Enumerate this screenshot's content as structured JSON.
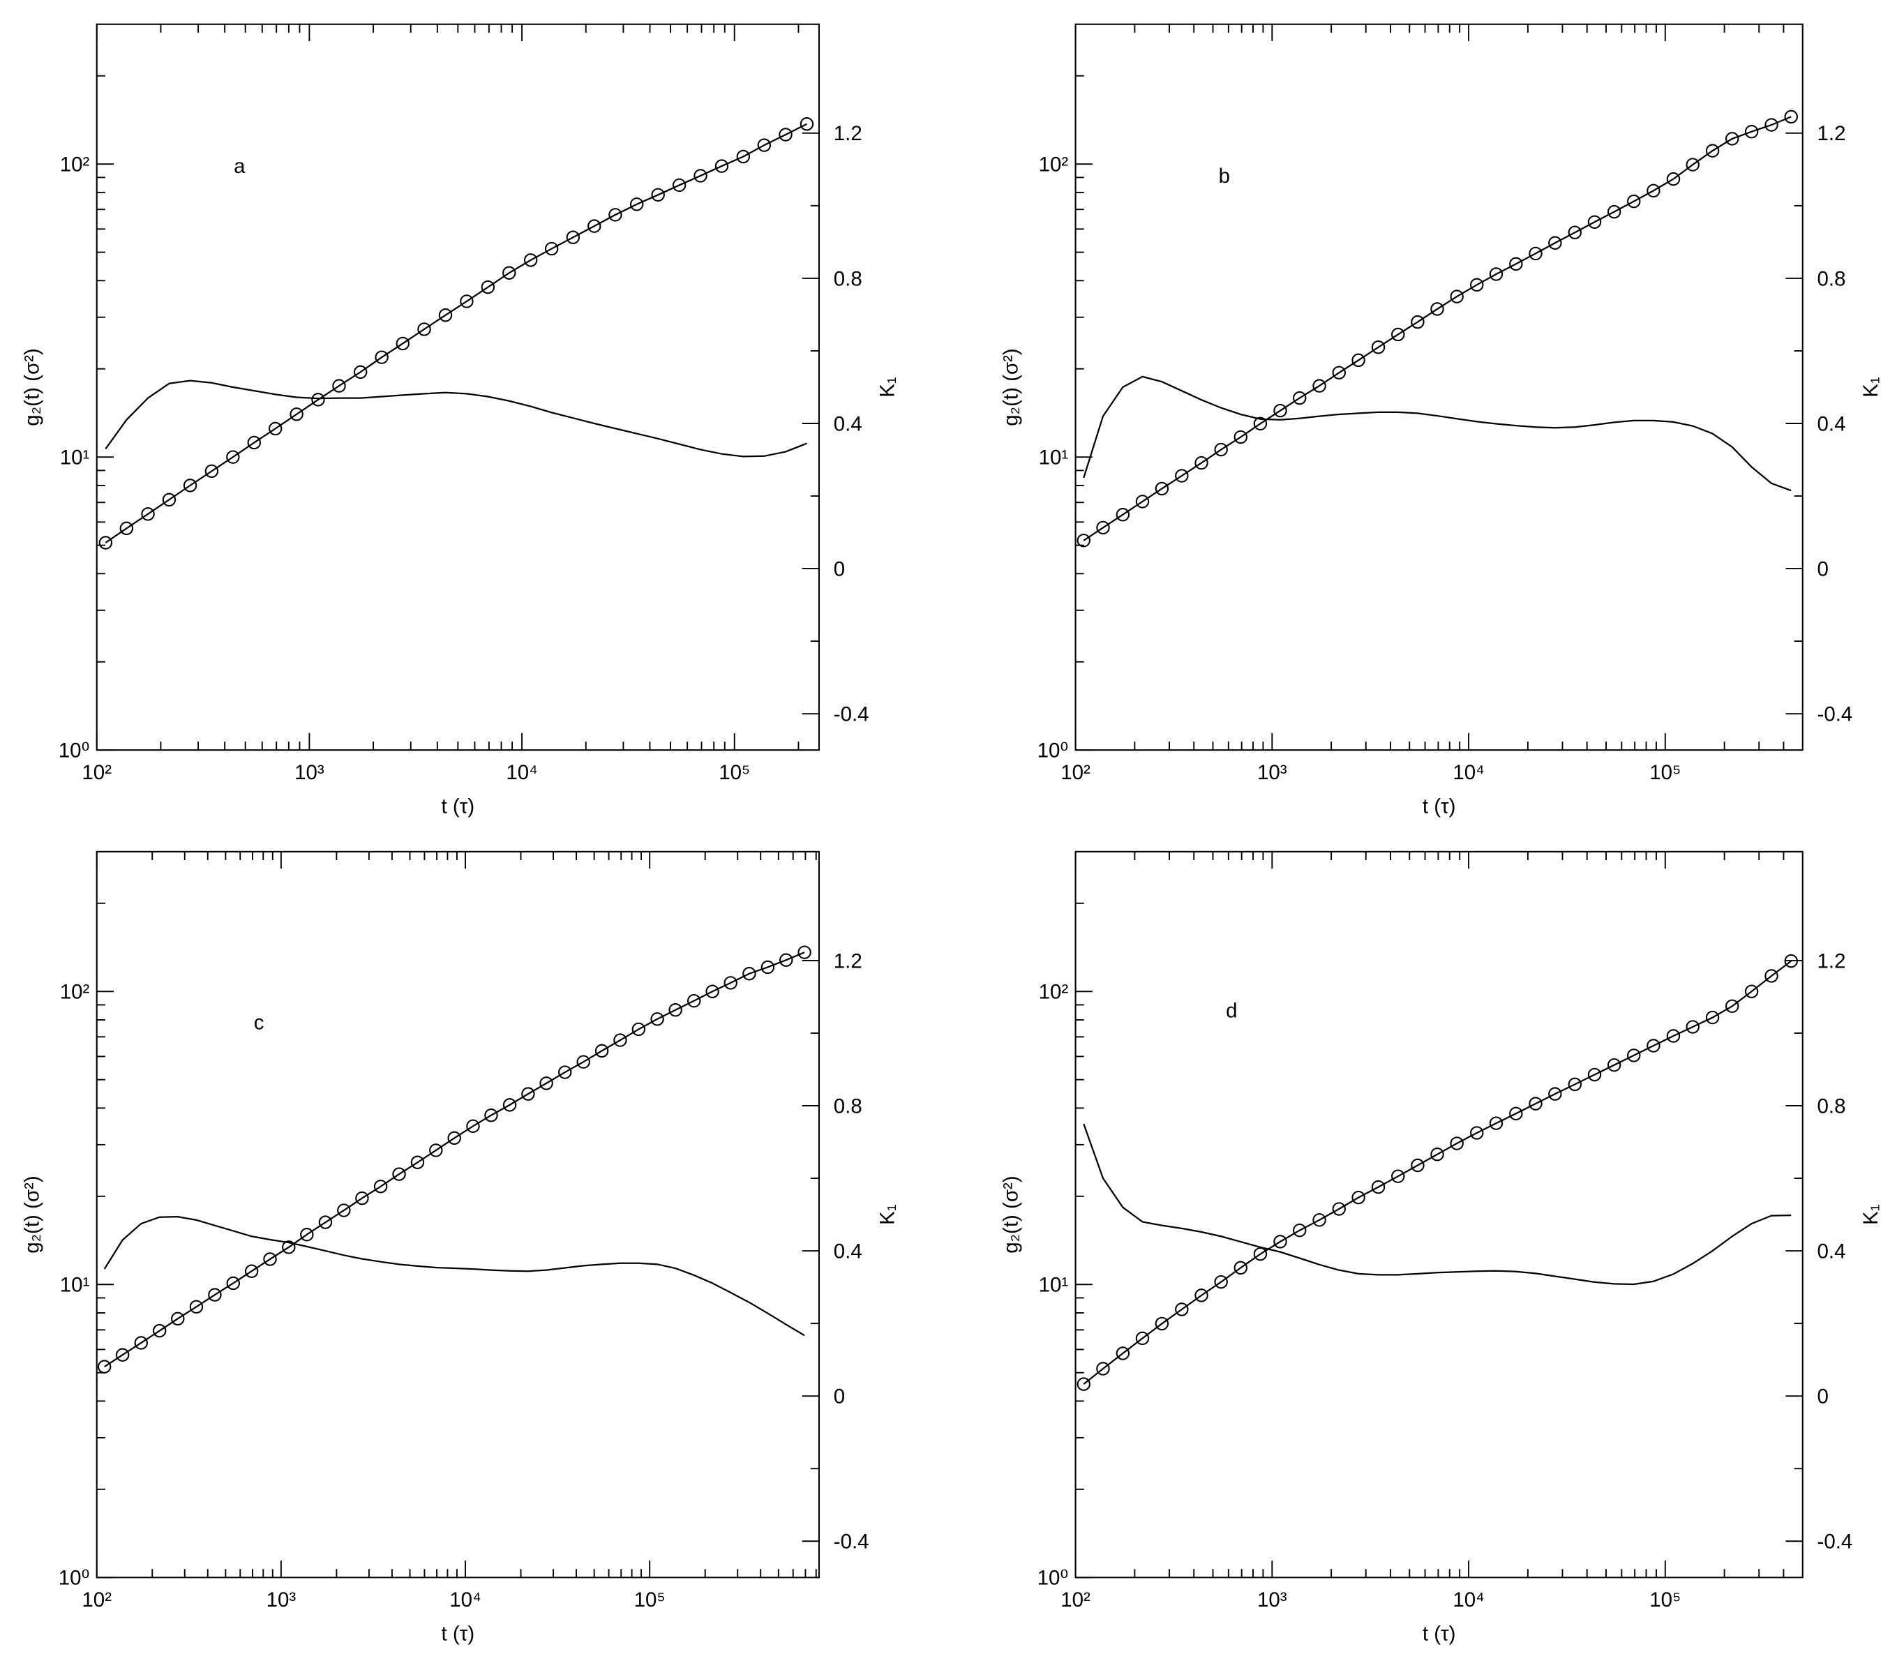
{
  "chart_data": [
    {
      "type": "line",
      "annotation": "a",
      "xlabel": "t (τ)",
      "ylabel": "g₂(t) (σ²)",
      "y2label": "K₁",
      "xscale": "log",
      "yscale": "log",
      "xlim": [
        100,
        250000
      ],
      "ylim": [
        1,
        300
      ],
      "y2lim": [
        -0.5,
        1.5
      ],
      "xticks": [
        {
          "value": 100,
          "label": "10²"
        },
        {
          "value": 1000,
          "label": "10³"
        },
        {
          "value": 10000,
          "label": "10⁴"
        },
        {
          "value": 100000,
          "label": "10⁵"
        }
      ],
      "yticks": [
        {
          "value": 1,
          "label": "10⁰"
        },
        {
          "value": 10,
          "label": "10¹"
        },
        {
          "value": 100,
          "label": "10²"
        }
      ],
      "y2ticks": [
        -0.4,
        0,
        0.4,
        0.8,
        1.2
      ],
      "x": [
        110,
        138,
        174,
        219,
        275,
        347,
        437,
        550,
        692,
        871,
        1100,
        1380,
        1740,
        2190,
        2750,
        3470,
        4370,
        5500,
        6920,
        8710,
        11000,
        13800,
        17400,
        21900,
        27500,
        34700,
        43700,
        55000,
        69200,
        87100,
        110000,
        138000,
        174000,
        219000
      ],
      "series": [
        {
          "color": "#000000",
          "markers": true,
          "values": [
            5.1,
            5.71,
            6.39,
            7.15,
            8,
            8.95,
            10,
            11.2,
            12.5,
            14,
            15.7,
            17.5,
            19.5,
            21.9,
            24.4,
            27.3,
            30.5,
            34,
            38,
            42.5,
            47,
            51.4,
            56.2,
            61.4,
            67.1,
            72.9,
            78.5,
            84.7,
            91.2,
            98.4,
            106,
            116,
            126,
            137
          ]
        },
        {
          "color": "#000000",
          "markers": false,
          "axis": "y2",
          "values": [
            0.33,
            0.41,
            0.47,
            0.51,
            0.518,
            0.512,
            0.5,
            0.49,
            0.48,
            0.472,
            0.469,
            0.47,
            0.47,
            0.474,
            0.478,
            0.482,
            0.485,
            0.482,
            0.474,
            0.462,
            0.447,
            0.43,
            0.415,
            0.4,
            0.386,
            0.372,
            0.358,
            0.343,
            0.328,
            0.316,
            0.309,
            0.31,
            0.322,
            0.345
          ]
        }
      ]
    },
    {
      "type": "line",
      "annotation": "b",
      "xlabel": "t (τ)",
      "ylabel": "g₂(t) (σ²)",
      "y2label": "K₁",
      "xscale": "log",
      "yscale": "log",
      "xlim": [
        100,
        500000
      ],
      "ylim": [
        1,
        300
      ],
      "y2lim": [
        -0.5,
        1.5
      ],
      "xticks": [
        {
          "value": 100,
          "label": "10²"
        },
        {
          "value": 1000,
          "label": "10³"
        },
        {
          "value": 10000,
          "label": "10⁴"
        },
        {
          "value": 100000,
          "label": "10⁵"
        }
      ],
      "yticks": [
        {
          "value": 1,
          "label": "10⁰"
        },
        {
          "value": 10,
          "label": "10¹"
        },
        {
          "value": 100,
          "label": "10²"
        }
      ],
      "y2ticks": [
        -0.4,
        0,
        0.4,
        0.8,
        1.2
      ],
      "x": [
        110,
        138,
        174,
        219,
        275,
        347,
        437,
        550,
        692,
        871,
        1100,
        1380,
        1740,
        2190,
        2750,
        3470,
        4370,
        5500,
        6920,
        8710,
        11000,
        13800,
        17400,
        21900,
        27500,
        34700,
        43700,
        55000,
        69200,
        87100,
        110000,
        138000,
        174000,
        219000,
        275000,
        347000,
        437000
      ],
      "series": [
        {
          "color": "#000000",
          "markers": true,
          "values": [
            5.19,
            5.74,
            6.36,
            7.05,
            7.8,
            8.63,
            9.55,
            10.6,
            11.7,
            13,
            14.4,
            15.9,
            17.5,
            19.4,
            21.4,
            23.7,
            26.2,
            28.9,
            32,
            35.3,
            38.7,
            42.1,
            45.6,
            49.5,
            53.8,
            58.4,
            63.4,
            68.7,
            74.6,
            81.1,
            88.9,
            99.5,
            111,
            122,
            129,
            136,
            145
          ]
        },
        {
          "color": "#000000",
          "markers": false,
          "axis": "y2",
          "values": [
            0.25,
            0.42,
            0.5,
            0.529,
            0.515,
            0.49,
            0.465,
            0.443,
            0.425,
            0.412,
            0.41,
            0.414,
            0.42,
            0.425,
            0.428,
            0.431,
            0.431,
            0.428,
            0.421,
            0.413,
            0.405,
            0.399,
            0.394,
            0.39,
            0.388,
            0.39,
            0.396,
            0.403,
            0.408,
            0.408,
            0.404,
            0.393,
            0.372,
            0.335,
            0.28,
            0.235,
            0.215
          ]
        }
      ]
    },
    {
      "type": "line",
      "annotation": "c",
      "xlabel": "t (τ)",
      "ylabel": "g₂(t) (σ²)",
      "y2label": "K₁",
      "xscale": "log",
      "yscale": "log",
      "xlim": [
        100,
        830000
      ],
      "ylim": [
        1,
        300
      ],
      "y2lim": [
        -0.5,
        1.5
      ],
      "xticks": [
        {
          "value": 100,
          "label": "10²"
        },
        {
          "value": 1000,
          "label": "10³"
        },
        {
          "value": 10000,
          "label": "10⁴"
        },
        {
          "value": 100000,
          "label": "10⁵"
        }
      ],
      "yticks": [
        {
          "value": 1,
          "label": "10⁰"
        },
        {
          "value": 10,
          "label": "10¹"
        },
        {
          "value": 100,
          "label": "10²"
        }
      ],
      "y2ticks": [
        -0.4,
        0,
        0.4,
        0.8,
        1.2
      ],
      "x": [
        110,
        138,
        174,
        219,
        275,
        347,
        437,
        550,
        692,
        871,
        1100,
        1380,
        1740,
        2190,
        2750,
        3470,
        4370,
        5500,
        6920,
        8710,
        11000,
        13800,
        17400,
        21900,
        27500,
        34700,
        43700,
        55000,
        69200,
        87100,
        110000,
        138000,
        174000,
        219000,
        275000,
        347000,
        437000,
        550000,
        692000
      ],
      "series": [
        {
          "color": "#000000",
          "markers": true,
          "values": [
            5.24,
            5.75,
            6.32,
            6.95,
            7.64,
            8.39,
            9.22,
            10.1,
            11.1,
            12.2,
            13.4,
            14.8,
            16.3,
            17.9,
            19.7,
            21.6,
            23.8,
            26.1,
            28.7,
            31.6,
            34.7,
            37.8,
            41,
            44.7,
            48.6,
            53,
            57.5,
            62.7,
            68.2,
            74.3,
            80.5,
            86.5,
            92.9,
            100,
            107,
            115,
            121,
            128,
            136
          ]
        },
        {
          "color": "#000000",
          "markers": false,
          "axis": "y2",
          "values": [
            0.35,
            0.43,
            0.475,
            0.493,
            0.494,
            0.485,
            0.47,
            0.455,
            0.44,
            0.431,
            0.423,
            0.412,
            0.4,
            0.388,
            0.378,
            0.37,
            0.363,
            0.358,
            0.354,
            0.352,
            0.35,
            0.347,
            0.345,
            0.344,
            0.347,
            0.353,
            0.359,
            0.363,
            0.366,
            0.366,
            0.363,
            0.352,
            0.333,
            0.311,
            0.285,
            0.258,
            0.228,
            0.197,
            0.167
          ]
        }
      ]
    },
    {
      "type": "line",
      "annotation": "d",
      "xlabel": "t (τ)",
      "ylabel": "g₂(t) (σ²)",
      "y2label": "K₁",
      "xscale": "log",
      "yscale": "log",
      "xlim": [
        100,
        500000
      ],
      "ylim": [
        1,
        300
      ],
      "y2lim": [
        -0.5,
        1.5
      ],
      "xticks": [
        {
          "value": 100,
          "label": "10²"
        },
        {
          "value": 1000,
          "label": "10³"
        },
        {
          "value": 10000,
          "label": "10⁴"
        },
        {
          "value": 100000,
          "label": "10⁵"
        }
      ],
      "yticks": [
        {
          "value": 1,
          "label": "10⁰"
        },
        {
          "value": 10,
          "label": "10¹"
        },
        {
          "value": 100,
          "label": "10²"
        }
      ],
      "y2ticks": [
        -0.4,
        0,
        0.4,
        0.8,
        1.2
      ],
      "x": [
        110,
        138,
        174,
        219,
        275,
        347,
        437,
        550,
        692,
        871,
        1100,
        1380,
        1740,
        2190,
        2750,
        3470,
        4370,
        5500,
        6920,
        8710,
        11000,
        13800,
        17400,
        21900,
        27500,
        34700,
        43700,
        55000,
        69200,
        87100,
        110000,
        138000,
        174000,
        219000,
        275000,
        347000,
        437000
      ],
      "series": [
        {
          "color": "#000000",
          "markers": true,
          "values": [
            4.57,
            5.16,
            5.82,
            6.55,
            7.35,
            8.22,
            9.18,
            10.2,
            11.4,
            12.7,
            14,
            15.3,
            16.6,
            18.1,
            19.8,
            21.5,
            23.4,
            25.5,
            27.8,
            30.3,
            32.9,
            35.5,
            38.3,
            41.4,
            44.7,
            48.2,
            52,
            56.1,
            60.5,
            65.3,
            70.5,
            75.7,
            81.5,
            89.1,
            100,
            113,
            127
          ]
        },
        {
          "color": "#000000",
          "markers": false,
          "axis": "y2",
          "values": [
            0.75,
            0.6,
            0.52,
            0.48,
            0.47,
            0.462,
            0.452,
            0.44,
            0.425,
            0.41,
            0.397,
            0.38,
            0.362,
            0.347,
            0.337,
            0.334,
            0.334,
            0.337,
            0.34,
            0.342,
            0.344,
            0.345,
            0.343,
            0.338,
            0.33,
            0.322,
            0.314,
            0.309,
            0.308,
            0.316,
            0.336,
            0.365,
            0.4,
            0.44,
            0.475,
            0.497,
            0.498
          ]
        }
      ]
    }
  ]
}
